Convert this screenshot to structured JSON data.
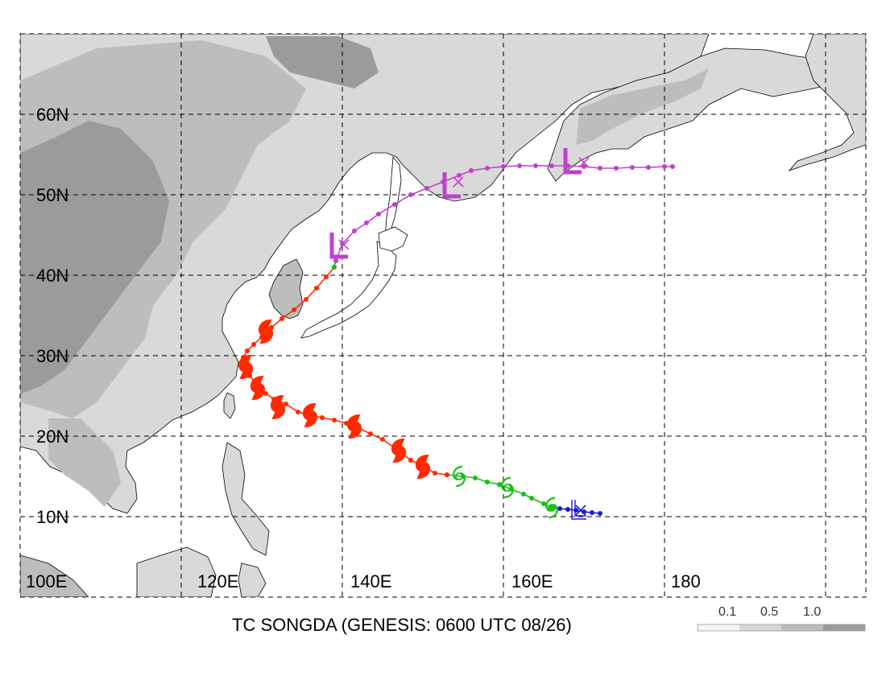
{
  "caption": "TC SONGDA (GENESIS: 0600 UTC 08/26)",
  "lat_labels": [
    "60N",
    "50N",
    "40N",
    "30N",
    "20N",
    "10N"
  ],
  "lon_labels": [
    "100E",
    "120E",
    "140E",
    "160E",
    "180"
  ],
  "extent": {
    "lon_min": 100,
    "lon_max": 205,
    "lat_min": 0,
    "lat_max": 70
  },
  "legend": {
    "labels": [
      "0.1",
      "0.5",
      "1.0"
    ],
    "colors": [
      "#f4f4f4",
      "#d7d7d7",
      "#bcbcbc",
      "#9b9b9b"
    ]
  },
  "colors": {
    "stage_genesis": "#1a1adb",
    "stage_tropical": "#16c016",
    "stage_typhoon": "#ff2a00",
    "stage_extratropical": "#c23fd0",
    "land_low": "#d9d9d9",
    "land_mid": "#bdbdbd",
    "land_high": "#999999"
  },
  "track": {
    "genesis": [
      [
        172,
        10.4
      ],
      [
        171,
        10.5
      ],
      [
        170,
        10.6
      ],
      [
        169,
        10.8
      ],
      [
        168,
        10.9
      ],
      [
        167,
        11.0
      ],
      [
        166,
        11.1
      ]
    ],
    "tropical": [
      [
        166,
        11.1
      ],
      [
        165,
        11.6
      ],
      [
        163.5,
        12.3
      ],
      [
        162.5,
        12.8
      ],
      [
        161,
        13.4
      ],
      [
        159.5,
        14.0
      ],
      [
        158,
        14.3
      ],
      [
        156.5,
        14.8
      ],
      [
        155,
        15.0
      ],
      [
        153,
        15.2
      ]
    ],
    "typhoon": [
      [
        153,
        15.2
      ],
      [
        151.5,
        15.4
      ],
      [
        150,
        16.3
      ],
      [
        148.5,
        17.0
      ],
      [
        147,
        18.2
      ],
      [
        145,
        19.6
      ],
      [
        143.5,
        20.3
      ],
      [
        142,
        21.0
      ],
      [
        140.5,
        21.6
      ],
      [
        139,
        22.0
      ],
      [
        137.5,
        22.3
      ],
      [
        136,
        22.6
      ],
      [
        134.5,
        23.0
      ],
      [
        133,
        24.0
      ],
      [
        131.5,
        24.6
      ],
      [
        130.5,
        25.3
      ],
      [
        129.5,
        26.3
      ],
      [
        128.5,
        27.5
      ],
      [
        127.8,
        28.5
      ],
      [
        127.7,
        29.8
      ],
      [
        128.2,
        30.6
      ],
      [
        129,
        31.4
      ],
      [
        130,
        32.3
      ],
      [
        130.8,
        33.2
      ],
      [
        131.2,
        33.5
      ],
      [
        132.5,
        34.6
      ],
      [
        134,
        35.7
      ],
      [
        135.5,
        37.0
      ],
      [
        136.8,
        38.4
      ],
      [
        138,
        39.8
      ],
      [
        139,
        41.0
      ]
    ],
    "transition": [
      [
        139,
        41.0
      ],
      [
        139.2,
        41.8
      ]
    ],
    "extratropical": [
      [
        139.2,
        41.8
      ],
      [
        140,
        43.9
      ],
      [
        141.5,
        45.5
      ],
      [
        143,
        46.5
      ],
      [
        144.5,
        47.6
      ],
      [
        146.5,
        48.8
      ],
      [
        148.5,
        50.0
      ],
      [
        150.5,
        50.8
      ],
      [
        152.5,
        51.6
      ],
      [
        154.5,
        52.4
      ],
      [
        156,
        53.0
      ],
      [
        158,
        53.3
      ],
      [
        160,
        53.5
      ],
      [
        162,
        53.6
      ],
      [
        164,
        53.6
      ],
      [
        166,
        53.6
      ],
      [
        168,
        53.6
      ],
      [
        170,
        53.5
      ],
      [
        172,
        53.3
      ],
      [
        174,
        53.3
      ],
      [
        176,
        53.4
      ],
      [
        178,
        53.4
      ],
      [
        180,
        53.5
      ],
      [
        181,
        53.5
      ]
    ]
  },
  "symbols": {
    "genesis_low": [
      169.5,
      10.7
    ],
    "tropical_storms": [
      [
        166,
        11.1
      ],
      [
        160.5,
        13.6
      ],
      [
        154.5,
        15.0
      ]
    ],
    "typhoons": [
      [
        150,
        16.2
      ],
      [
        147,
        18.2
      ],
      [
        141.5,
        21.2
      ],
      [
        136,
        22.6
      ],
      [
        132,
        23.6
      ],
      [
        129.5,
        26.0
      ],
      [
        128,
        28.6
      ],
      [
        130.5,
        33.0
      ]
    ],
    "extratropical_lows": [
      [
        139.5,
        43.5
      ],
      [
        153.5,
        51.0
      ],
      [
        168.5,
        54.0
      ]
    ],
    "x_marks": [
      [
        169.6,
        10.8
      ],
      [
        140.2,
        43.8
      ],
      [
        154.4,
        51.6
      ],
      [
        170,
        54.0
      ]
    ]
  }
}
